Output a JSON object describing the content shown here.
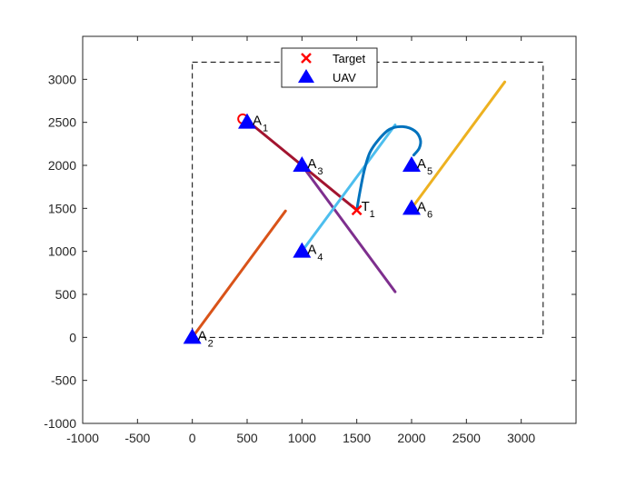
{
  "chart_data": {
    "type": "line",
    "xlim": [
      -1000,
      3000
    ],
    "ylim": [
      -1000,
      3500
    ],
    "xticks": [
      "-1000",
      "-500",
      "0",
      "500",
      "1000",
      "1500",
      "2000",
      "2500",
      "3000"
    ],
    "yticks": [
      "-1000",
      "-500",
      "0",
      "500",
      "1000",
      "1500",
      "2000",
      "2500",
      "3000"
    ],
    "ytick_values": [
      -1000,
      -500,
      0,
      500,
      1000,
      1500,
      2000,
      2500,
      3000
    ],
    "xtick_values": [
      -1000,
      -500,
      0,
      500,
      1000,
      1500,
      2000,
      2500,
      3000
    ],
    "grid": false,
    "legend_position": "top-center",
    "legend": [
      {
        "label": "Target",
        "marker": "x",
        "color": "#ff0000"
      },
      {
        "label": "UAV",
        "marker": "triangle",
        "color": "#0000ff"
      }
    ],
    "boundary": {
      "x": [
        0,
        3200
      ],
      "y": [
        0,
        3200
      ],
      "style": "dashed"
    },
    "uavs": [
      {
        "name": "A",
        "sub": "1",
        "x": 500,
        "y": 2500
      },
      {
        "name": "A",
        "sub": "2",
        "x": 0,
        "y": 0
      },
      {
        "name": "A",
        "sub": "3",
        "x": 1000,
        "y": 2000
      },
      {
        "name": "A",
        "sub": "4",
        "x": 1000,
        "y": 1000
      },
      {
        "name": "A",
        "sub": "5",
        "x": 2000,
        "y": 2000
      },
      {
        "name": "A",
        "sub": "6",
        "x": 2000,
        "y": 1500
      }
    ],
    "targets": [
      {
        "name": "T",
        "sub": "1",
        "x": 1500,
        "y": 1480
      }
    ],
    "series": [
      {
        "color": "#a2142f",
        "points": [
          [
            500,
            2520
          ],
          [
            1500,
            1480
          ]
        ],
        "start_circle": [
          460,
          2540
        ]
      },
      {
        "color": "#d95319",
        "points": [
          [
            0,
            0
          ],
          [
            850,
            1470
          ]
        ]
      },
      {
        "color": "#7e2f8e",
        "points": [
          [
            1000,
            2000
          ],
          [
            1850,
            530
          ]
        ]
      },
      {
        "color": "#4dbeee",
        "points": [
          [
            1000,
            1000
          ],
          [
            1850,
            2470
          ]
        ]
      },
      {
        "color": "#edb120",
        "points": [
          [
            2000,
            1500
          ],
          [
            2850,
            2970
          ]
        ]
      },
      {
        "color": "#0072bd",
        "points": [
          [
            1500,
            1480
          ],
          [
            1530,
            1700
          ],
          [
            1570,
            1950
          ],
          [
            1620,
            2150
          ],
          [
            1700,
            2300
          ],
          [
            1800,
            2420
          ],
          [
            1920,
            2450
          ],
          [
            2030,
            2400
          ],
          [
            2080,
            2300
          ],
          [
            2070,
            2200
          ],
          [
            2020,
            2120
          ]
        ]
      }
    ]
  }
}
